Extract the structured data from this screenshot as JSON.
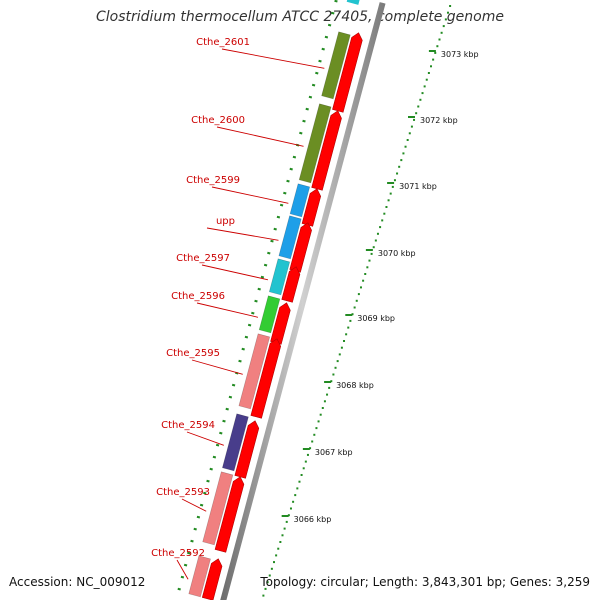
{
  "map": {
    "title": "Clostridium thermocellum ATCC 27405, complete genome",
    "accession": "Accession: NC_009012",
    "summary": "Topology: circular; Length: 3,843,301 bp; Genes: 3,259"
  },
  "genes": [
    {
      "label": "Cthe_2601",
      "color": "#6b8e23"
    },
    {
      "label": "Cthe_2600",
      "color": "#6b8e23"
    },
    {
      "label": "Cthe_2599",
      "color": "#1e9fe8"
    },
    {
      "label": "upp",
      "color": "#1e9fe8"
    },
    {
      "label": "Cthe_2597",
      "color": "#22c3cf"
    },
    {
      "label": "Cthe_2596",
      "color": "#33cc33"
    },
    {
      "label": "Cthe_2595",
      "color": "#f08080"
    },
    {
      "label": "Cthe_2594",
      "color": "#483d8b"
    },
    {
      "label": "Cthe_2593",
      "color": "#f08080"
    },
    {
      "label": "Cthe_2592",
      "color": "#f08080"
    }
  ],
  "scale": [
    "3073 kbp",
    "3072 kbp",
    "3071 kbp",
    "3070 kbp",
    "3069 kbp",
    "3068 kbp",
    "3067 kbp",
    "3066 kbp"
  ],
  "colors": {
    "forward_strand": "#ff0000",
    "backbone": "#8a8a8a",
    "gene_label": "#cc0000",
    "tick": "#228b22"
  }
}
